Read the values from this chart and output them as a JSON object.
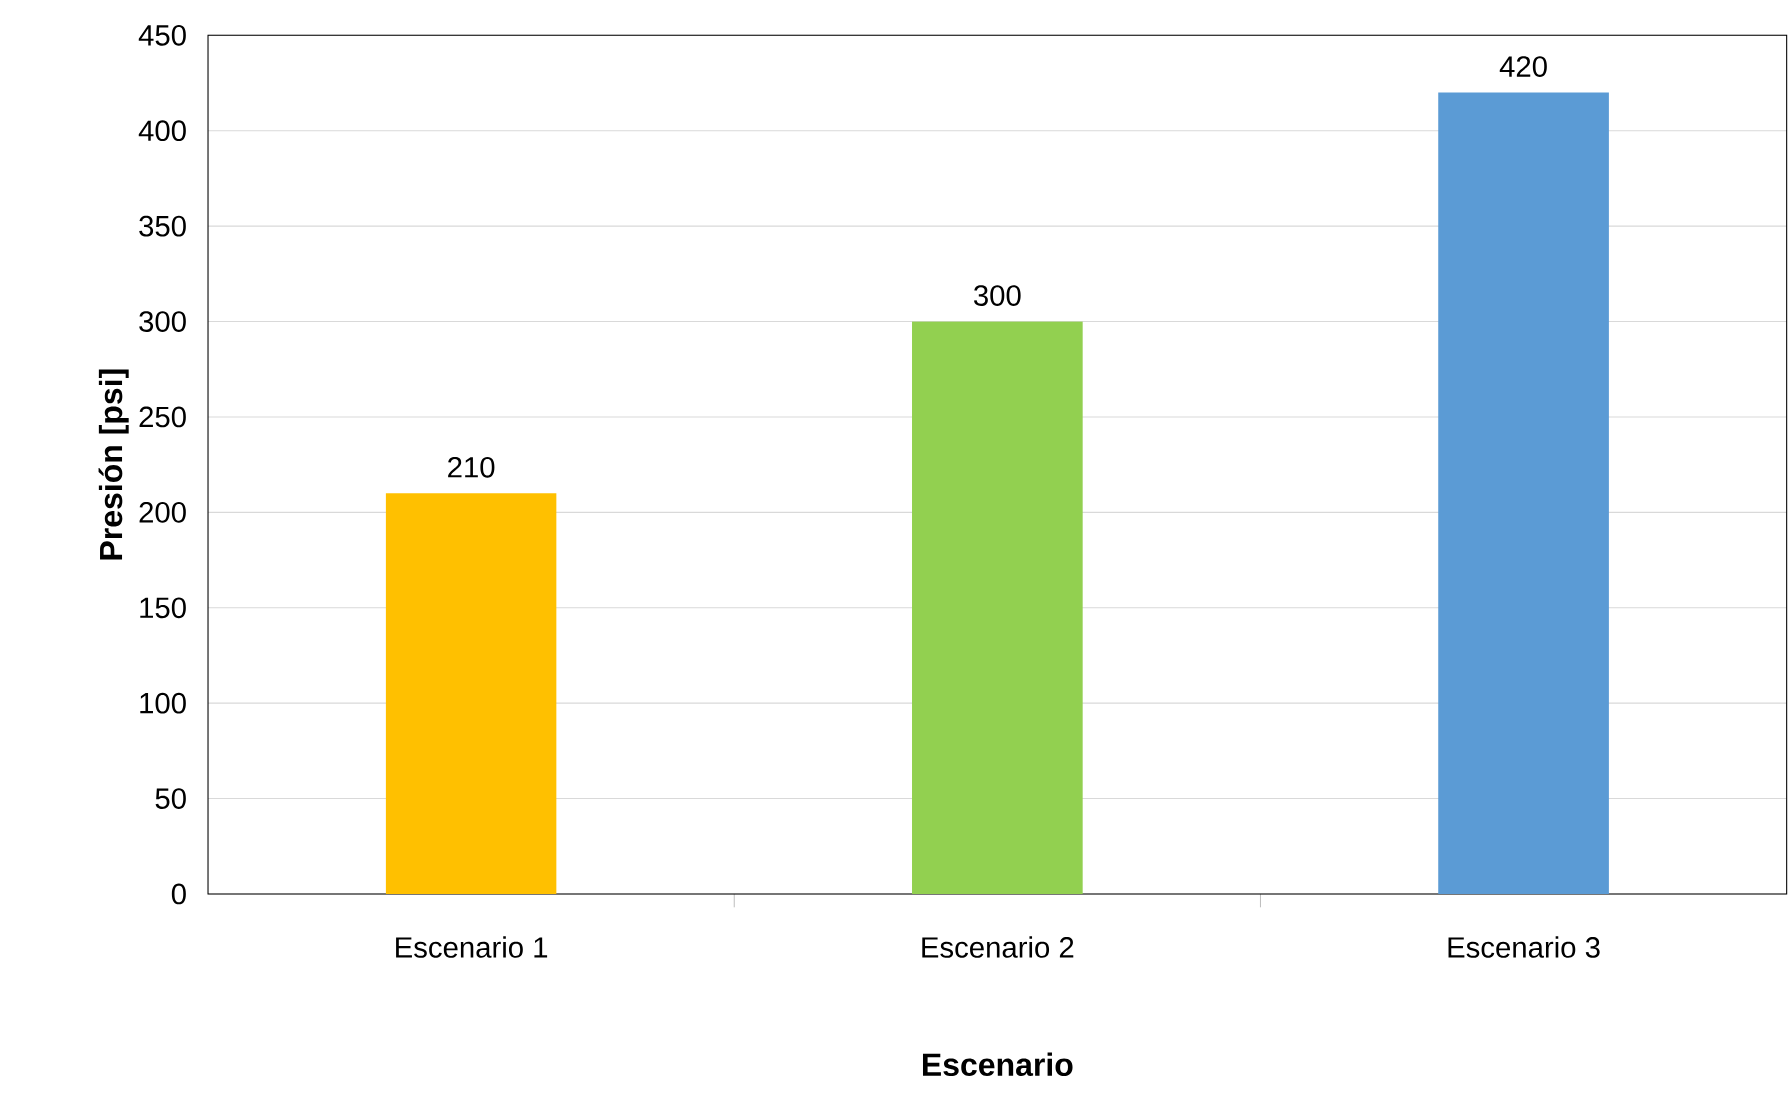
{
  "chart_data": {
    "type": "bar",
    "xlabel": "Escenario",
    "ylabel": "Presión [psi]",
    "categories": [
      "Escenario 1",
      "Escenario 2",
      "Escenario 3"
    ],
    "values": [
      210,
      300,
      420
    ],
    "colors": [
      "#ffc000",
      "#92d050",
      "#5b9bd5"
    ],
    "ylim": [
      0,
      450
    ],
    "yticks": [
      0,
      50,
      100,
      150,
      200,
      250,
      300,
      350,
      400,
      450
    ],
    "grid": "y",
    "data_labels": true
  }
}
